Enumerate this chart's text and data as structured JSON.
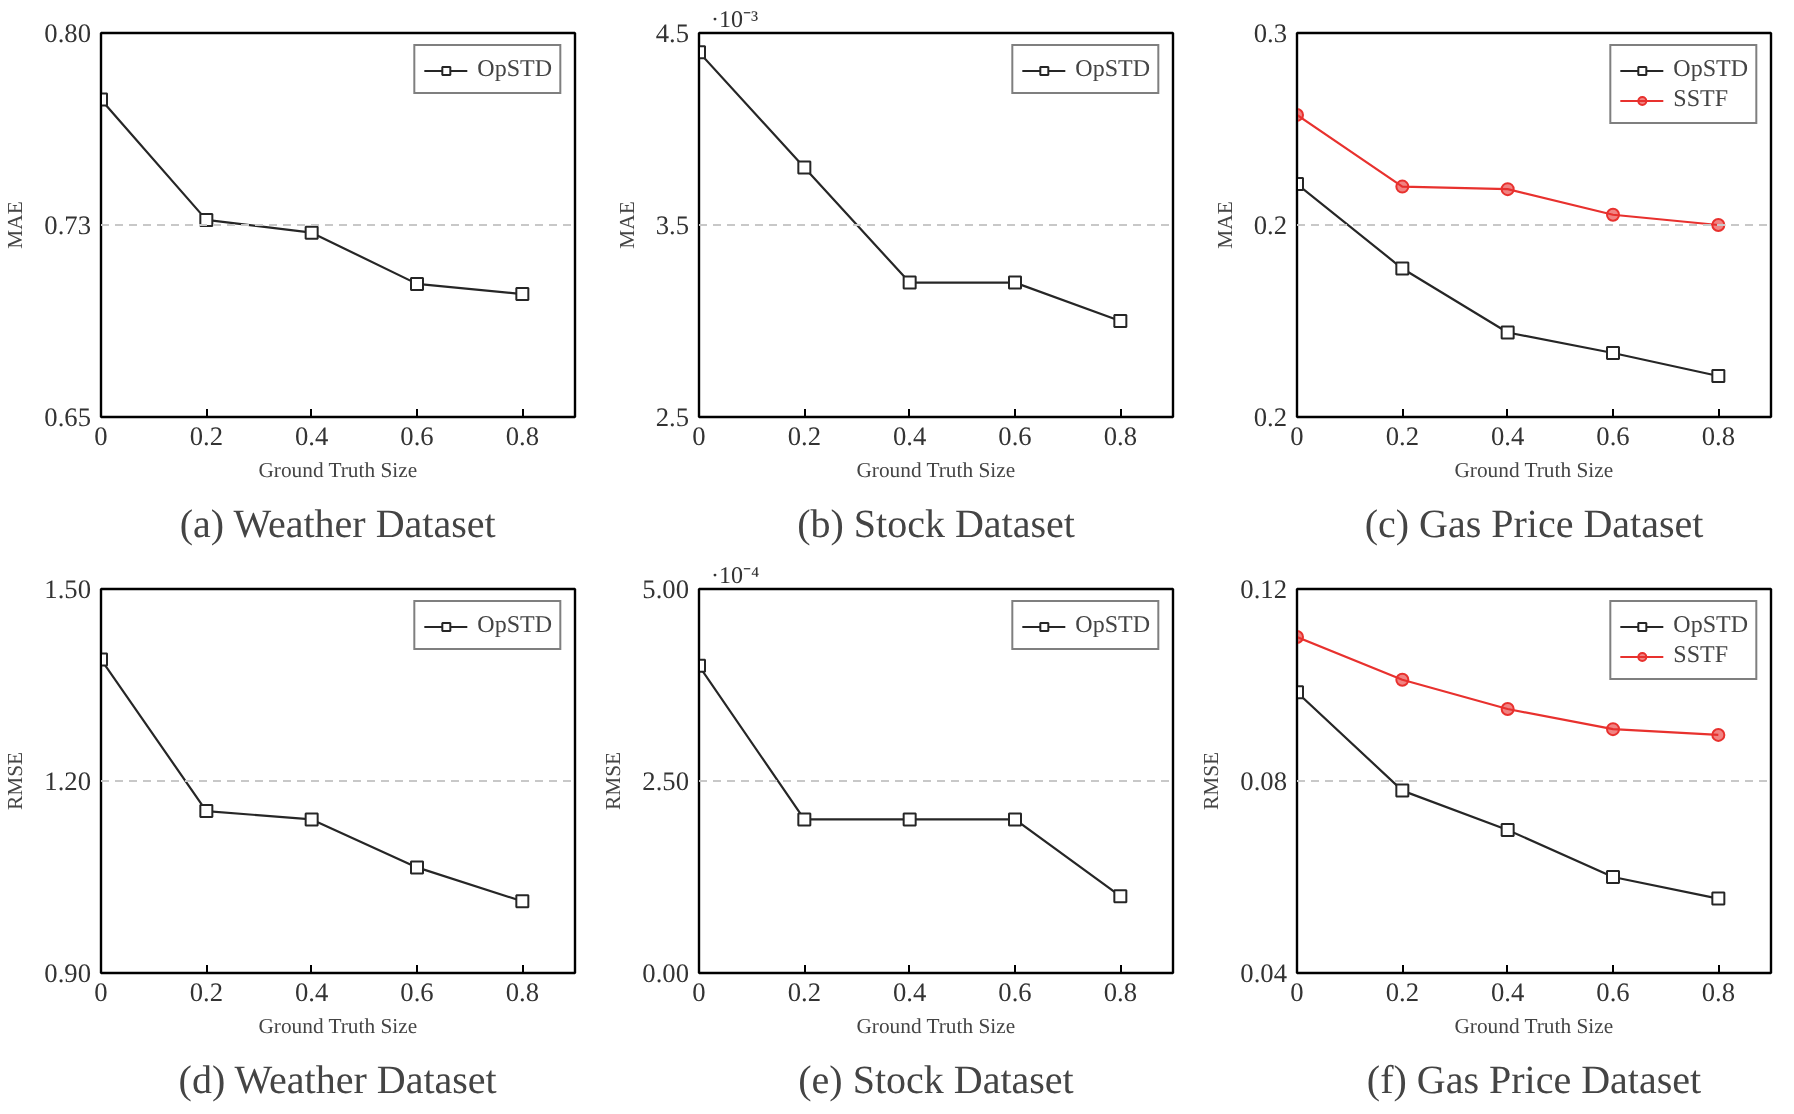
{
  "chart_data": [
    {
      "type": "line",
      "title": "(a) Weather Dataset",
      "xlabel": "Ground Truth Size",
      "ylabel": "MAE",
      "x": [
        0,
        0.2,
        0.4,
        0.6,
        0.8
      ],
      "xlim": [
        0,
        0.9
      ],
      "xticks": [
        0,
        0.2,
        0.4,
        0.6,
        0.8
      ],
      "ylim": [
        0.65,
        0.8
      ],
      "yticks": [
        {
          "value": 0.65,
          "label": "0.65"
        },
        {
          "value": 0.725,
          "label": "0.73"
        },
        {
          "value": 0.8,
          "label": "0.80"
        }
      ],
      "ref_lines": [
        {
          "axis": "y",
          "value": 0.725,
          "color": "#c8c8c8",
          "line_style": "dashed"
        }
      ],
      "legend": "top right",
      "marker": "square",
      "series": [
        {
          "name": "OpSTD",
          "color": "#262626",
          "values": [
            0.774,
            0.727,
            0.722,
            0.702,
            0.698
          ]
        }
      ]
    },
    {
      "type": "line",
      "title": "(b) Stock Dataset",
      "annotations": [
        "·10⁻³"
      ],
      "xlabel": "Ground Truth Size",
      "ylabel": "MAE",
      "x": [
        0,
        0.2,
        0.4,
        0.6,
        0.8
      ],
      "xlim": [
        0,
        0.9
      ],
      "xticks": [
        0,
        0.2,
        0.4,
        0.6,
        0.8
      ],
      "ylim": [
        2.5,
        4.5
      ],
      "yticks": [
        2.5,
        3.5,
        4.5
      ],
      "ref_lines": [
        {
          "axis": "y",
          "value": 3.5,
          "color": "#c8c8c8",
          "line_style": "dashed"
        }
      ],
      "legend": "top right",
      "marker": "square",
      "series": [
        {
          "name": "OpSTD",
          "color": "#262626",
          "values": [
            4.4,
            3.8,
            3.2,
            3.2,
            3.0
          ]
        }
      ]
    },
    {
      "type": "line",
      "title": "(c) Gas Price Dataset",
      "xlabel": "Ground Truth Size",
      "ylabel": "MAE",
      "x": [
        0,
        0.2,
        0.4,
        0.6,
        0.8
      ],
      "xlim": [
        0,
        0.9
      ],
      "xticks": [
        0,
        0.2,
        0.4,
        0.6,
        0.8
      ],
      "ylim": [
        0.15,
        0.3
      ],
      "yticks": [
        {
          "value": 0.15,
          "label": "0.2"
        },
        {
          "value": 0.225,
          "label": "0.2"
        },
        {
          "value": 0.3,
          "label": "0.3"
        }
      ],
      "ref_lines": [
        {
          "axis": "y",
          "value": 0.225,
          "color": "#c8c8c8",
          "line_style": "dashed"
        }
      ],
      "legend": "top right",
      "series": [
        {
          "name": "OpSTD",
          "color": "#262626",
          "marker": "square",
          "values": [
            0.241,
            0.208,
            0.183,
            0.175,
            0.166
          ]
        },
        {
          "name": "SSTF",
          "color": "#e8312e",
          "marker": "circle",
          "values": [
            0.268,
            0.24,
            0.239,
            0.229,
            0.225
          ]
        }
      ]
    },
    {
      "type": "line",
      "title": "(d) Weather Dataset",
      "xlabel": "Ground Truth Size",
      "ylabel": "RMSE",
      "x": [
        0,
        0.2,
        0.4,
        0.6,
        0.8
      ],
      "xlim": [
        0,
        0.9
      ],
      "xticks": [
        0,
        0.2,
        0.4,
        0.6,
        0.8
      ],
      "ylim": [
        0.9,
        1.5
      ],
      "yticks": [
        {
          "value": 0.9,
          "label": "0.90"
        },
        {
          "value": 1.2,
          "label": "1.20"
        },
        {
          "value": 1.5,
          "label": "1.50"
        }
      ],
      "ref_lines": [
        {
          "axis": "y",
          "value": 1.2,
          "color": "#c8c8c8",
          "line_style": "dashed"
        }
      ],
      "legend": "top right",
      "marker": "square",
      "series": [
        {
          "name": "OpSTD",
          "color": "#262626",
          "values": [
            1.39,
            1.153,
            1.14,
            1.065,
            1.012
          ]
        }
      ]
    },
    {
      "type": "line",
      "title": "(e) Stock Dataset",
      "annotations": [
        "·10⁻⁴"
      ],
      "xlabel": "Ground Truth Size",
      "ylabel": "RMSE",
      "x": [
        0,
        0.2,
        0.4,
        0.6,
        0.8
      ],
      "xlim": [
        0,
        0.9
      ],
      "xticks": [
        0,
        0.2,
        0.4,
        0.6,
        0.8
      ],
      "ylim": [
        0,
        5
      ],
      "yticks": [
        {
          "value": 0,
          "label": "0.00"
        },
        {
          "value": 2.5,
          "label": "2.50"
        },
        {
          "value": 5,
          "label": "5.00"
        }
      ],
      "ref_lines": [
        {
          "axis": "y",
          "value": 2.5,
          "color": "#c8c8c8",
          "line_style": "dashed"
        }
      ],
      "legend": "top right",
      "marker": "square",
      "series": [
        {
          "name": "OpSTD",
          "color": "#262626",
          "values": [
            4.0,
            2.0,
            2.0,
            2.0,
            1.0
          ]
        }
      ]
    },
    {
      "type": "line",
      "title": "(f) Gas Price Dataset",
      "xlabel": "Ground Truth Size",
      "ylabel": "RMSE",
      "x": [
        0,
        0.2,
        0.4,
        0.6,
        0.8
      ],
      "xlim": [
        0,
        0.9
      ],
      "xticks": [
        0,
        0.2,
        0.4,
        0.6,
        0.8
      ],
      "ylim": [
        0.04,
        0.12
      ],
      "yticks": [
        0.04,
        0.08,
        0.12
      ],
      "ref_lines": [
        {
          "axis": "y",
          "value": 0.08,
          "color": "#c8c8c8",
          "line_style": "dashed"
        }
      ],
      "legend": "top right",
      "series": [
        {
          "name": "OpSTD",
          "color": "#262626",
          "marker": "square",
          "values": [
            0.0985,
            0.078,
            0.0698,
            0.06,
            0.0555
          ]
        },
        {
          "name": "SSTF",
          "color": "#e8312e",
          "marker": "circle",
          "values": [
            0.11,
            0.1011,
            0.095,
            0.0908,
            0.0896
          ]
        }
      ]
    }
  ]
}
